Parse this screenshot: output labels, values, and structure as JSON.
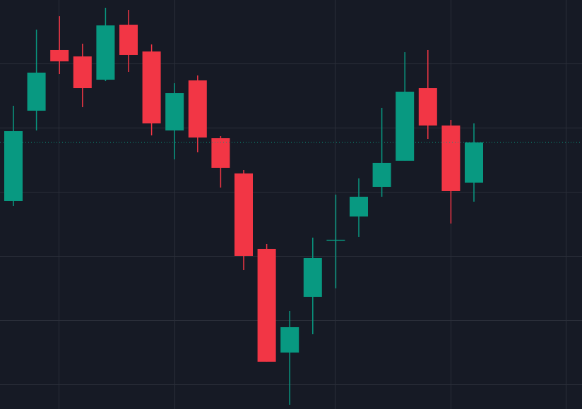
{
  "chart_data": {
    "type": "candlestick",
    "open": [
      38.57,
      52.64,
      62.09,
      61.1,
      57.47,
      66.04,
      61.87,
      49.56,
      57.36,
      48.35,
      42.86,
      31.1,
      14.95,
      23.63,
      32.53,
      36.15,
      40.77,
      44.84,
      56.15,
      50.33,
      41.43
    ],
    "high": [
      53.41,
      65.27,
      67.36,
      63.08,
      68.68,
      68.35,
      62.97,
      56.92,
      58.13,
      48.68,
      43.41,
      31.87,
      21.43,
      32.86,
      39.56,
      42.09,
      53.08,
      61.76,
      62.09,
      51.21,
      50.66
    ],
    "low": [
      37.8,
      49.56,
      58.35,
      53.19,
      57.25,
      58.68,
      48.79,
      45.05,
      46.15,
      40.66,
      27.8,
      13.52,
      6.81,
      17.8,
      24.95,
      32.97,
      39.23,
      44.84,
      48.24,
      35.05,
      38.46
    ],
    "close": [
      49.45,
      58.57,
      60.33,
      56.15,
      65.93,
      61.32,
      50.66,
      55.38,
      48.46,
      43.74,
      30.0,
      13.52,
      18.9,
      29.67,
      32.53,
      39.23,
      44.51,
      55.6,
      50.33,
      40.11,
      47.69
    ],
    "up_color": "#089981",
    "down_color": "#f23645",
    "ylim": [
      6.15,
      69.89
    ],
    "yticks": [
      10,
      20,
      30,
      40,
      50,
      60
    ],
    "grid": true,
    "price_line": true
  }
}
